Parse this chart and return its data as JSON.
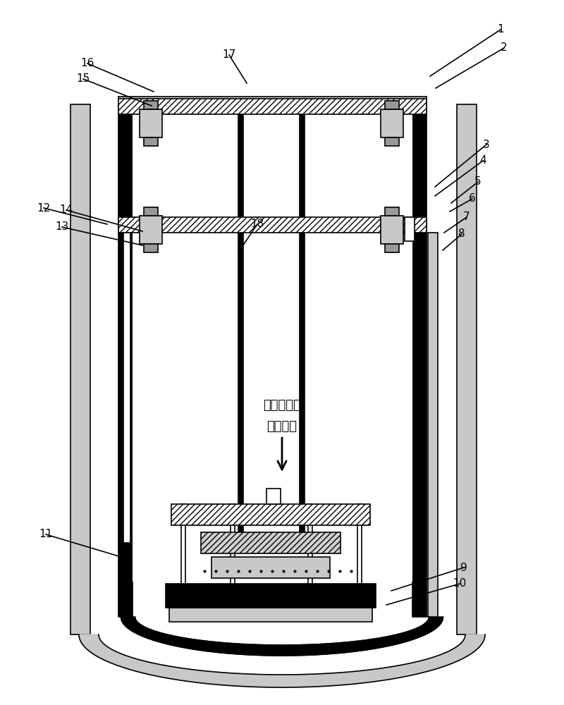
{
  "bg_color": "#ffffff",
  "line_color": "#000000",
  "gray_light": "#c8c8c8",
  "gray_medium": "#999999",
  "gray_dark": "#555555",
  "chinese_text1": "高电压测试",
  "chinese_text2": "电极系统",
  "label_data": [
    [
      "1",
      710,
      42,
      610,
      108
    ],
    [
      "2",
      715,
      68,
      618,
      125
    ],
    [
      "3",
      690,
      205,
      617,
      265
    ],
    [
      "4",
      685,
      228,
      617,
      278
    ],
    [
      "5",
      678,
      258,
      640,
      288
    ],
    [
      "6",
      670,
      282,
      638,
      300
    ],
    [
      "7",
      662,
      308,
      630,
      330
    ],
    [
      "8",
      655,
      332,
      628,
      355
    ],
    [
      "9",
      658,
      805,
      555,
      838
    ],
    [
      "10",
      652,
      828,
      548,
      858
    ],
    [
      "11",
      65,
      758,
      172,
      790
    ],
    [
      "12",
      62,
      295,
      152,
      318
    ],
    [
      "13",
      88,
      322,
      202,
      348
    ],
    [
      "14",
      94,
      298,
      202,
      328
    ],
    [
      "15",
      118,
      112,
      215,
      150
    ],
    [
      "16",
      124,
      90,
      218,
      130
    ],
    [
      "17",
      325,
      78,
      350,
      118
    ],
    [
      "18",
      365,
      318,
      338,
      358
    ]
  ]
}
